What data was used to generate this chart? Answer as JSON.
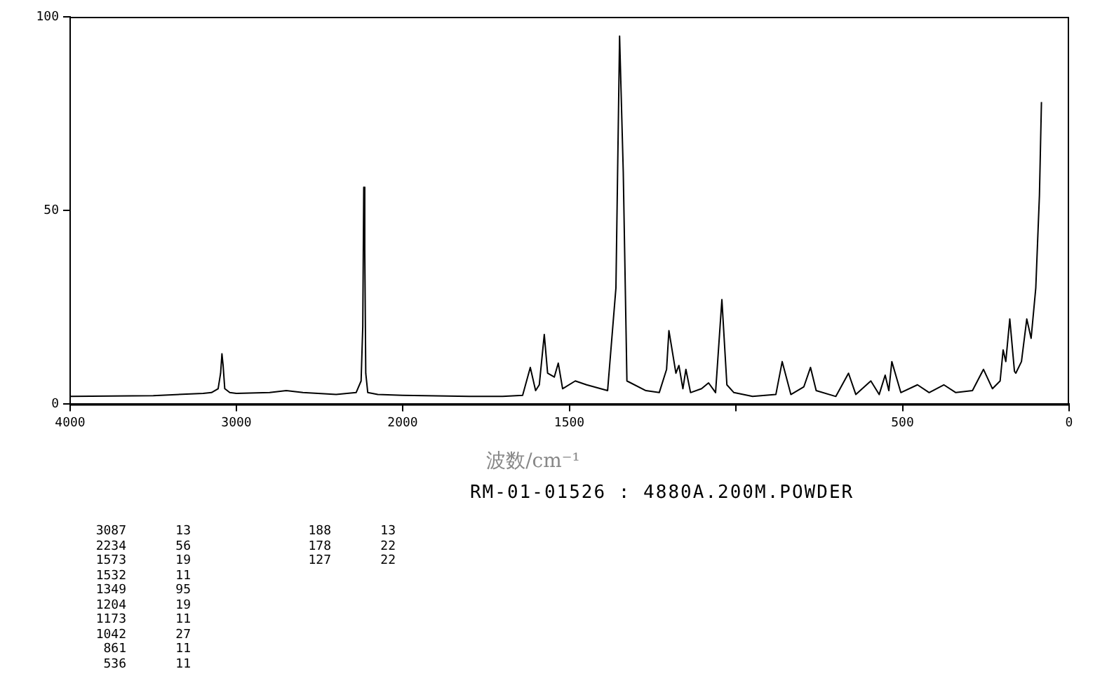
{
  "chart_data": [
    {
      "type": "line",
      "x": [
        4000,
        3500,
        3200,
        3150,
        3110,
        3095,
        3087,
        3080,
        3070,
        3040,
        3000,
        2800,
        2700,
        2600,
        2400,
        2280,
        2250,
        2240,
        2234,
        2228,
        2222,
        2210,
        2150,
        2000
      ],
      "series": [
        {
          "color": "#000000",
          "values": [
            2,
            2.2,
            2.8,
            3,
            4,
            8,
            13,
            10,
            4,
            3,
            2.8,
            3,
            3.5,
            3,
            2.5,
            3,
            6,
            20,
            56,
            40,
            8,
            3,
            2.5,
            2.3
          ]
        }
      ],
      "xlim": [
        4000,
        2000
      ],
      "xticks": [
        4000,
        3000,
        2000
      ],
      "ylim": [
        0,
        100
      ],
      "yticks": [
        0,
        50,
        100
      ],
      "grid": false,
      "legend": false,
      "marker": "none",
      "line_style": "solid",
      "annotations": [
        "3087 13",
        "2234 56",
        "1573 19",
        "1532 11",
        "1349 95",
        "1204 19",
        "1173 11",
        "1042 27",
        "861 11",
        "536 11",
        "188 13",
        "178 22",
        "127 22"
      ]
    },
    {
      "type": "line",
      "xlabel": "波数/cm⁻¹",
      "subtitle": "RM-01-01526 : 4880A.200M.POWDER",
      "x": [
        2000,
        1800,
        1700,
        1640,
        1617,
        1601,
        1590,
        1575,
        1565,
        1545,
        1533,
        1520,
        1482,
        1448,
        1385,
        1360,
        1349,
        1338,
        1327,
        1270,
        1230,
        1208,
        1201,
        1180,
        1171,
        1159,
        1150,
        1136,
        1103,
        1082,
        1061,
        1042,
        1027,
        1006,
        950,
        880,
        861,
        835,
        796,
        776,
        759,
        700,
        662,
        640,
        595,
        570,
        552,
        541,
        532,
        505,
        455,
        420,
        376,
        340,
        290,
        257,
        230,
        207,
        198,
        190,
        178,
        164,
        160,
        143,
        127,
        114,
        100,
        89,
        83
      ],
      "series": [
        {
          "color": "#000000",
          "values": [
            2.3,
            2,
            2,
            2.3,
            9.5,
            3.5,
            5,
            18,
            8,
            7,
            10.6,
            4,
            6,
            5,
            3.5,
            30,
            95,
            60,
            6,
            3.5,
            3,
            9,
            19,
            8,
            10,
            4,
            9,
            3,
            4,
            5.5,
            3,
            27,
            5,
            3,
            2,
            2.5,
            11,
            2.5,
            4.5,
            9.5,
            3.5,
            2,
            8,
            2.5,
            6,
            2.5,
            7.5,
            3.5,
            11,
            3,
            5,
            3,
            5,
            3,
            3.5,
            9,
            4,
            6,
            14,
            11,
            22,
            8.5,
            8,
            11,
            22,
            17,
            30,
            54,
            78
          ]
        }
      ],
      "xlim": [
        2000,
        0
      ],
      "xticks": [
        {
          "value": 2000,
          "label": null
        },
        1500,
        {
          "value": 1000,
          "label": null
        },
        500,
        0
      ],
      "ylim": [
        0,
        100
      ],
      "yticks": [
        0,
        50,
        100
      ],
      "tick_labels": "x",
      "grid": false,
      "legend": false,
      "marker": "none",
      "line_style": "solid"
    }
  ]
}
